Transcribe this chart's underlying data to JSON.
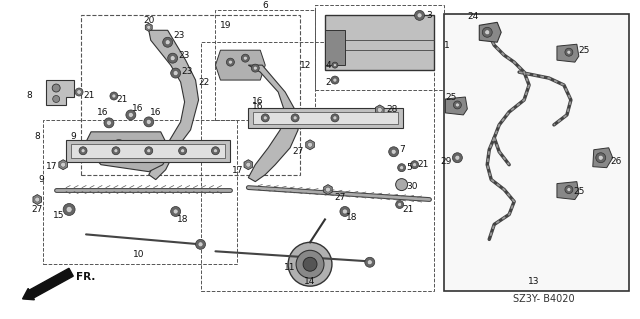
{
  "diagram_code": "SZ3Y- B4020",
  "background_color": "#ffffff",
  "fig_width": 6.4,
  "fig_height": 3.19,
  "dpi": 100,
  "line_color": "#222222",
  "gray_fill": "#b0b0b0",
  "light_fill": "#d8d8d8",
  "dark_fill": "#555555"
}
